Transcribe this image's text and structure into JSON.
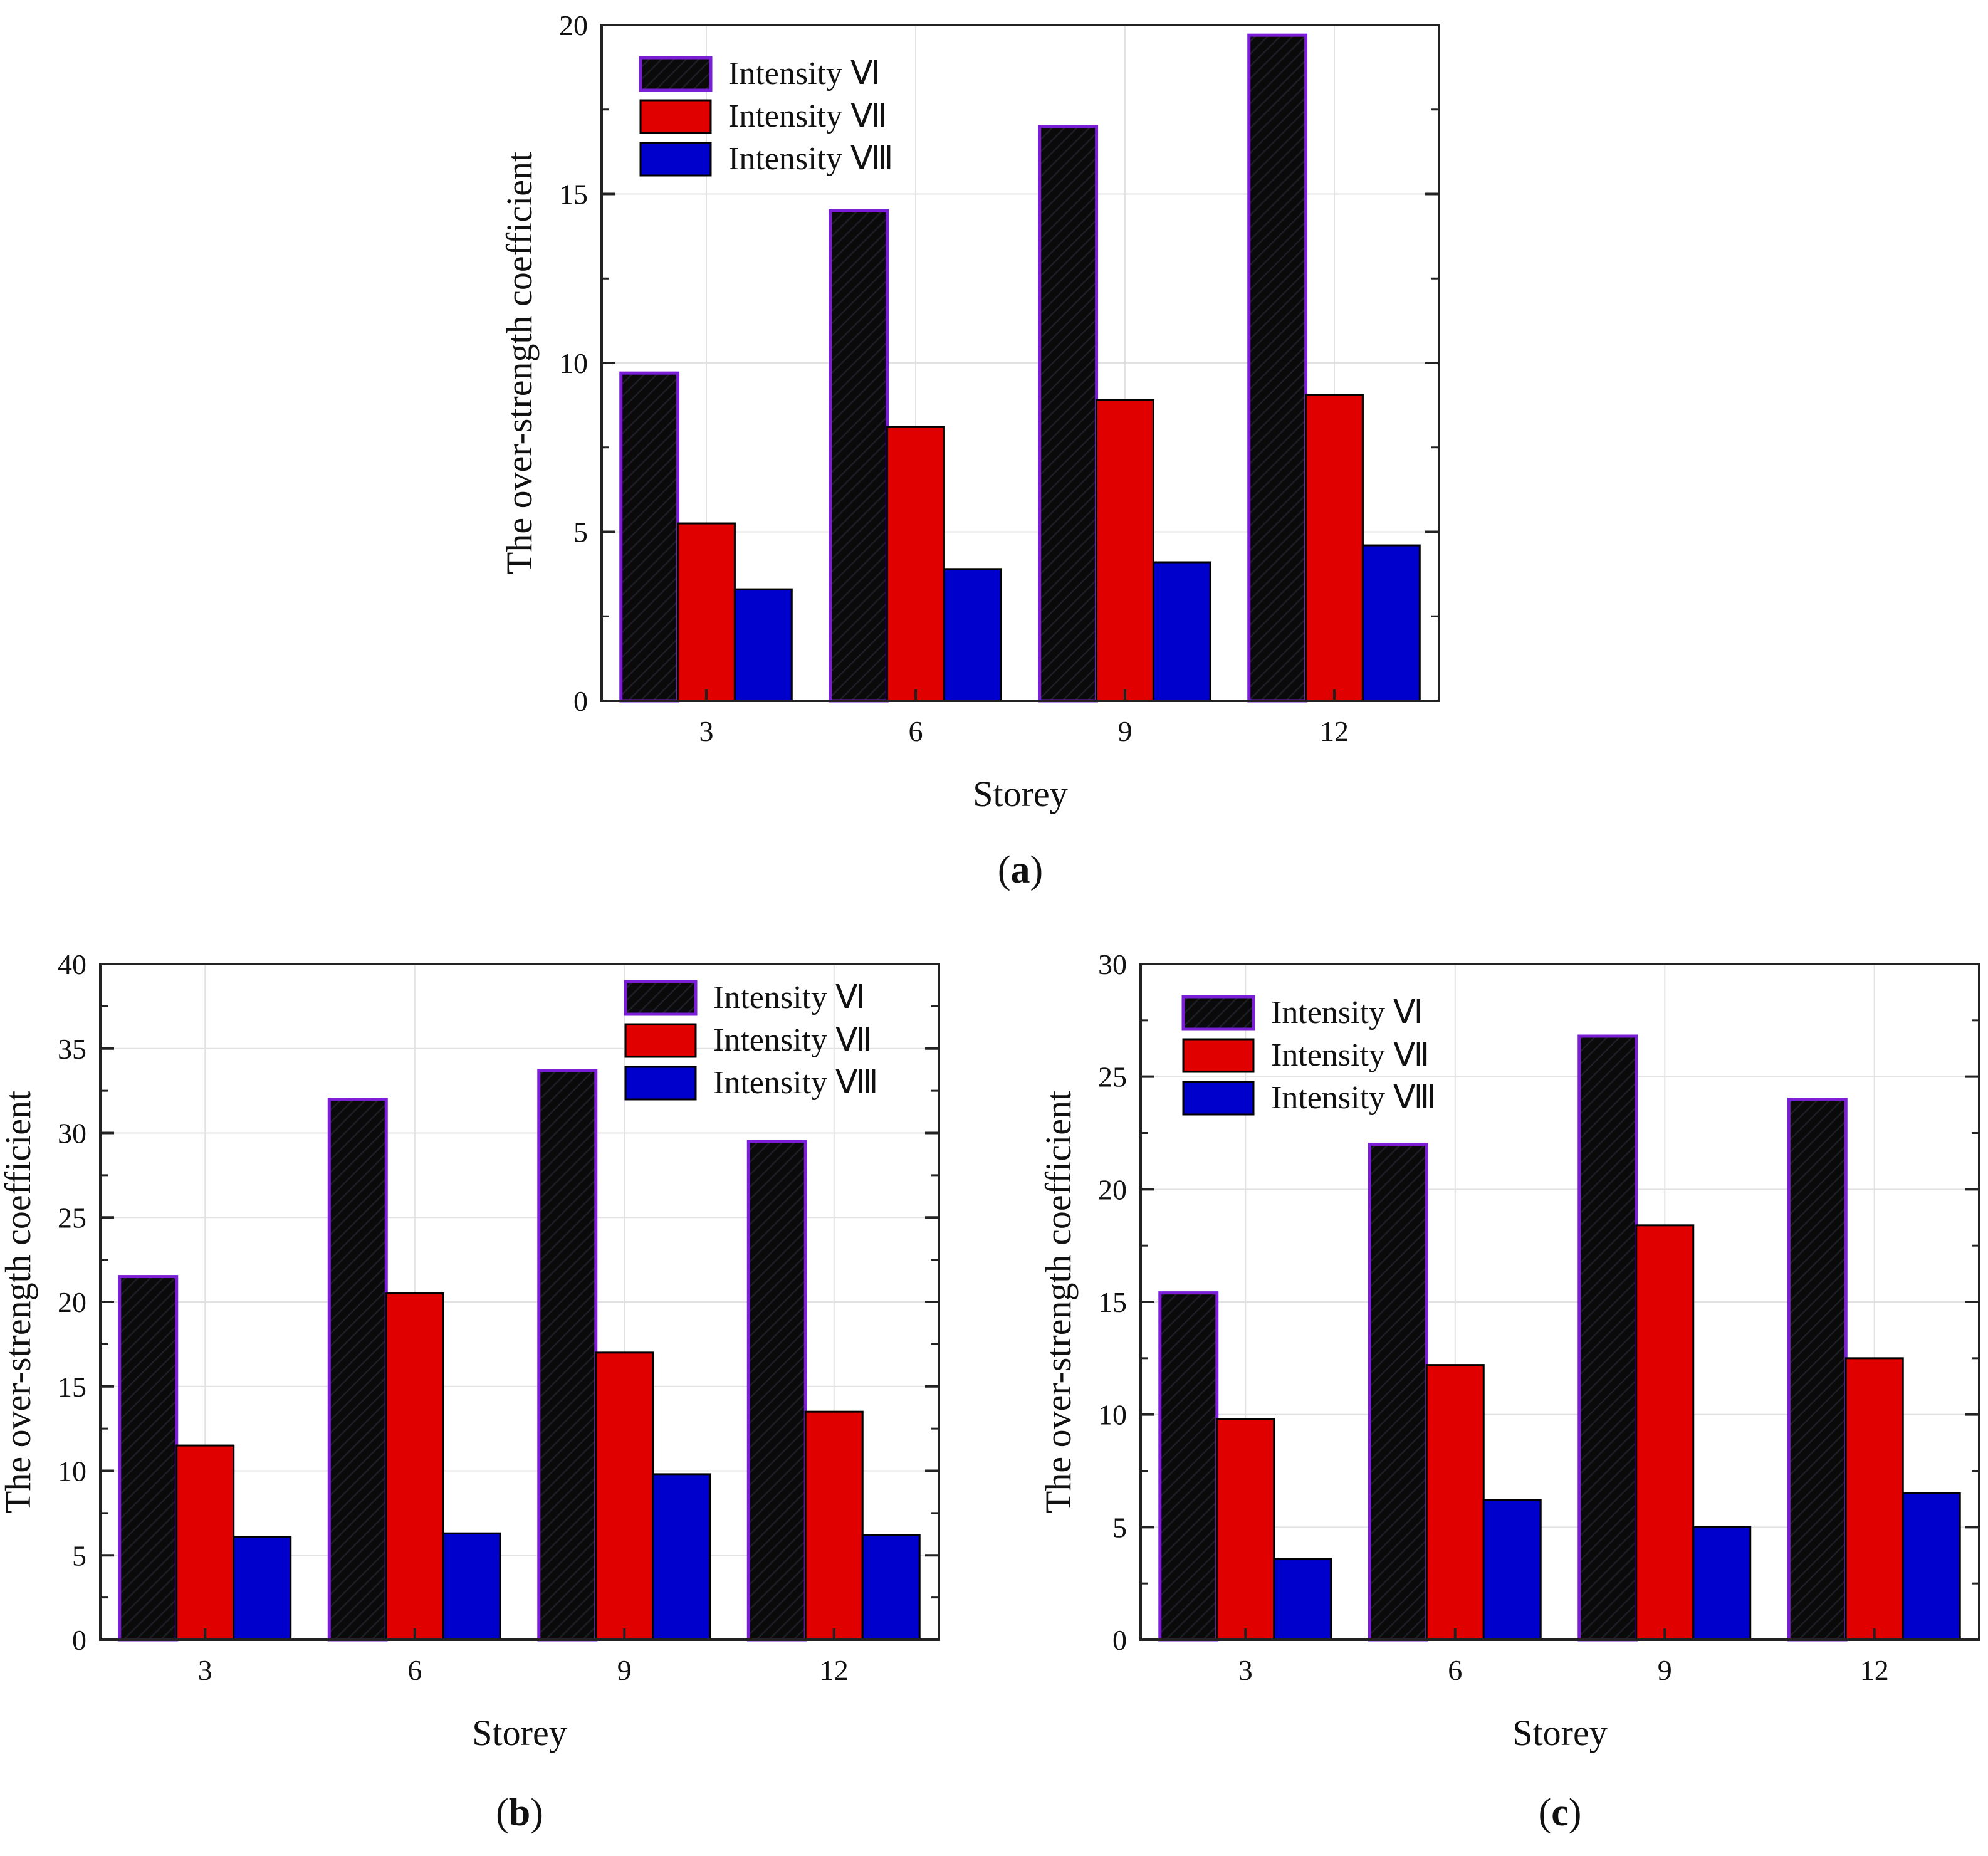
{
  "chart_data": [
    {
      "type": "bar",
      "panel_label": "a",
      "categories": [
        "3",
        "6",
        "9",
        "12"
      ],
      "series": [
        {
          "name": "Intensity Ⅵ",
          "color": "#000000",
          "values": [
            9.7,
            14.5,
            17.0,
            19.7
          ]
        },
        {
          "name": "Intensity Ⅶ",
          "color": "#e00000",
          "values": [
            5.25,
            8.1,
            8.9,
            9.05
          ]
        },
        {
          "name": "Intensity Ⅷ",
          "color": "#0000cc",
          "values": [
            3.3,
            3.9,
            4.1,
            4.6
          ]
        }
      ],
      "xlabel": "Storey",
      "ylabel": "The over-strength coefficient",
      "ylim": [
        0,
        20
      ],
      "yticks": [
        0,
        5,
        10,
        15,
        20
      ],
      "legend": "top-left",
      "grid": true
    },
    {
      "type": "bar",
      "panel_label": "b",
      "categories": [
        "3",
        "6",
        "9",
        "12"
      ],
      "series": [
        {
          "name": "Intensity Ⅵ",
          "color": "#000000",
          "values": [
            21.5,
            32.0,
            33.7,
            29.5
          ]
        },
        {
          "name": "Intensity Ⅶ",
          "color": "#e00000",
          "values": [
            11.5,
            20.5,
            17.0,
            13.5
          ]
        },
        {
          "name": "Intensity Ⅷ",
          "color": "#0000cc",
          "values": [
            6.1,
            6.3,
            9.8,
            6.2
          ]
        }
      ],
      "xlabel": "Storey",
      "ylabel": "The over-strength coefficient",
      "ylim": [
        0,
        40
      ],
      "yticks": [
        0,
        5,
        10,
        15,
        20,
        25,
        30,
        35,
        40
      ],
      "legend": "top-right",
      "grid": true
    },
    {
      "type": "bar",
      "panel_label": "c",
      "categories": [
        "3",
        "6",
        "9",
        "12"
      ],
      "series": [
        {
          "name": "Intensity Ⅵ",
          "color": "#000000",
          "values": [
            15.4,
            22.0,
            26.8,
            24.0
          ]
        },
        {
          "name": "Intensity Ⅶ",
          "color": "#e00000",
          "values": [
            9.8,
            12.2,
            18.4,
            12.5
          ]
        },
        {
          "name": "Intensity Ⅷ",
          "color": "#0000cc",
          "values": [
            3.6,
            6.2,
            5.0,
            6.5
          ]
        }
      ],
      "xlabel": "Storey",
      "ylabel": "The over-strength coefficient",
      "ylim": [
        0,
        30
      ],
      "yticks": [
        0,
        5,
        10,
        15,
        20,
        25,
        30
      ],
      "legend": "top-left",
      "grid": true
    }
  ]
}
